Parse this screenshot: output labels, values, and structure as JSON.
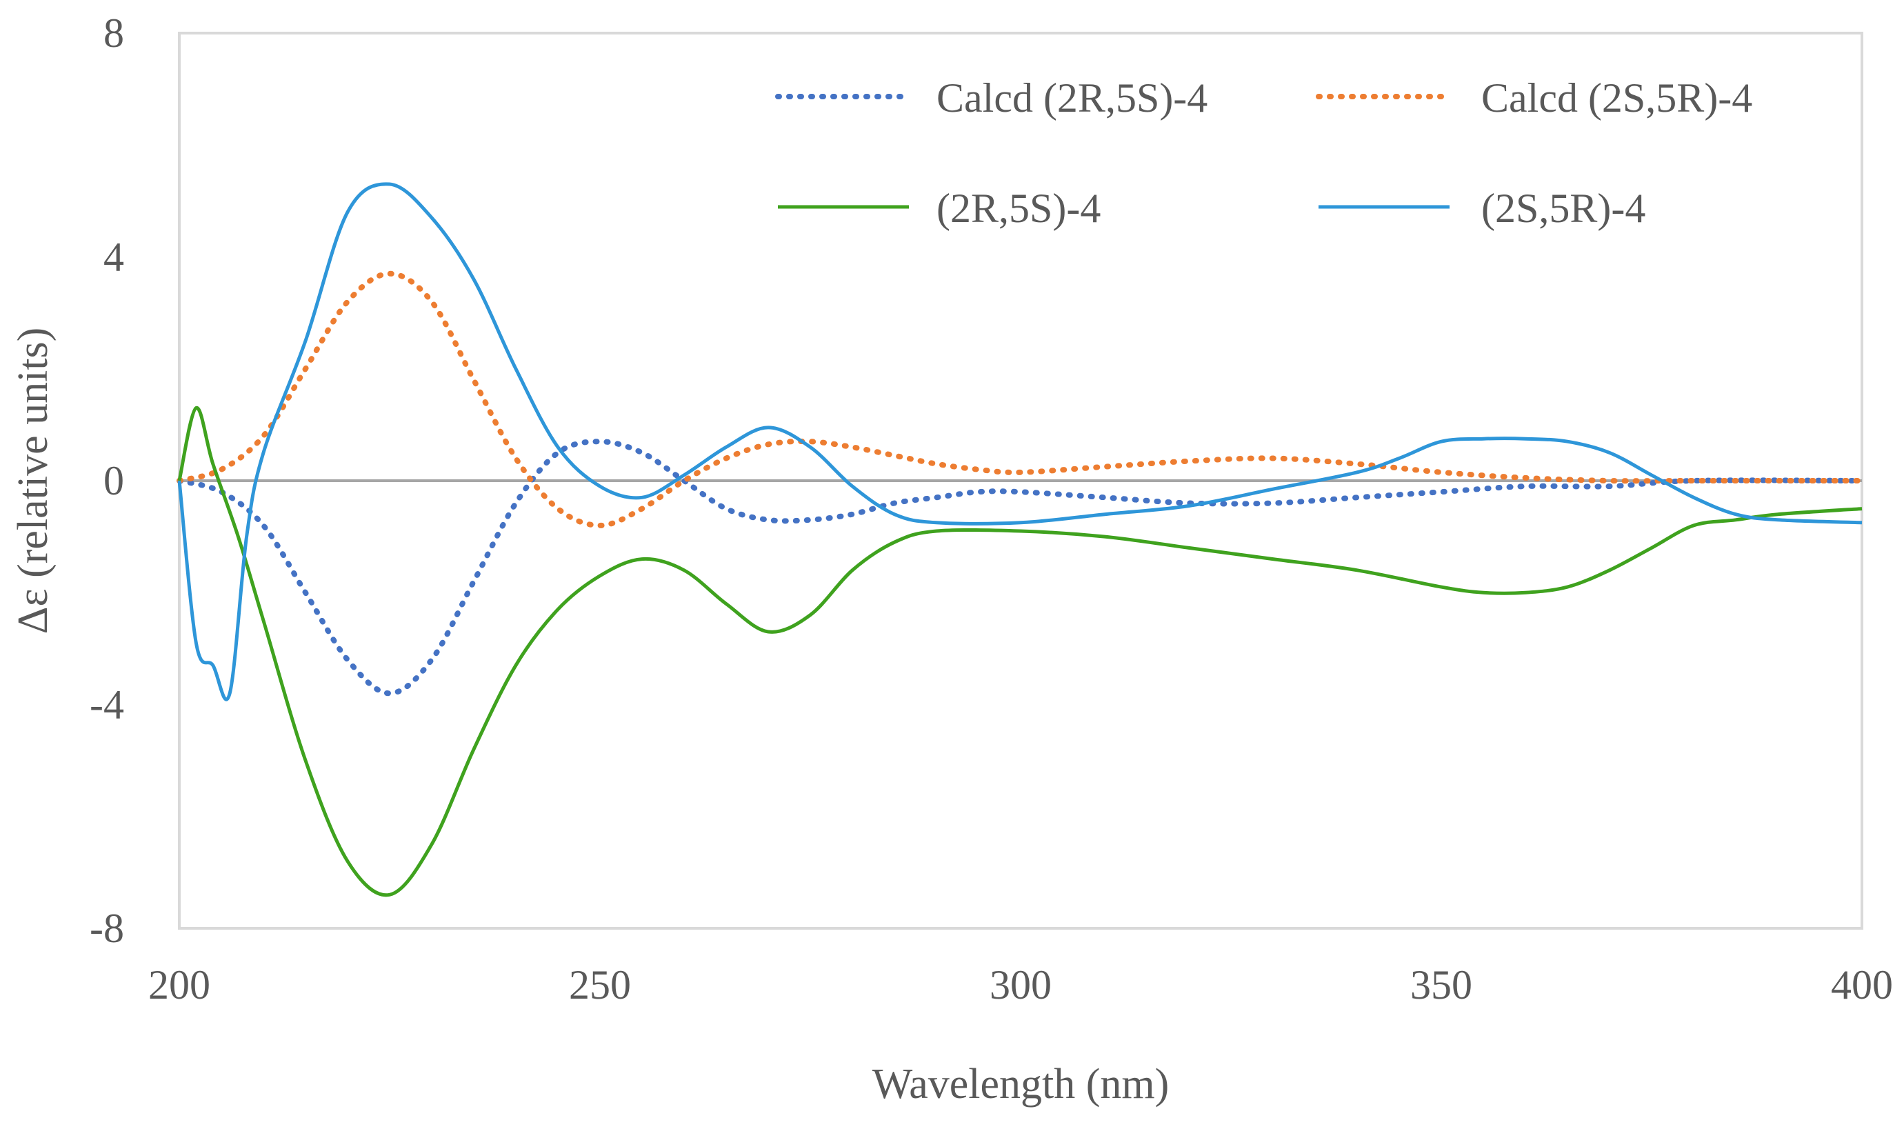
{
  "chart_data": {
    "type": "line",
    "title": "",
    "xlabel": "Wavelength (nm)",
    "ylabel": "Δε (relative units)",
    "xlim": [
      200,
      400
    ],
    "ylim": [
      -8,
      8
    ],
    "x_ticks": [
      "200",
      "250",
      "300",
      "350",
      "400"
    ],
    "y_ticks": [
      "8",
      "4",
      "0",
      "-4",
      "-8"
    ],
    "x_tick_values": [
      200,
      250,
      300,
      350,
      400
    ],
    "y_tick_values": [
      8,
      4,
      0,
      -4,
      -8
    ],
    "grid": false,
    "legend_position": "top-right",
    "series": [
      {
        "name": "Calcd (2R,5S)-4",
        "color": "#4472C4",
        "style": "dotted",
        "points": [
          [
            200,
            0.0
          ],
          [
            205,
            -0.2
          ],
          [
            210,
            -0.8
          ],
          [
            215,
            -2.0
          ],
          [
            220,
            -3.2
          ],
          [
            225,
            -3.8
          ],
          [
            230,
            -3.2
          ],
          [
            235,
            -1.8
          ],
          [
            240,
            -0.4
          ],
          [
            245,
            0.5
          ],
          [
            250,
            0.7
          ],
          [
            255,
            0.5
          ],
          [
            260,
            0.0
          ],
          [
            265,
            -0.5
          ],
          [
            270,
            -0.7
          ],
          [
            275,
            -0.7
          ],
          [
            280,
            -0.6
          ],
          [
            285,
            -0.4
          ],
          [
            290,
            -0.3
          ],
          [
            295,
            -0.2
          ],
          [
            300,
            -0.2
          ],
          [
            310,
            -0.3
          ],
          [
            320,
            -0.4
          ],
          [
            330,
            -0.4
          ],
          [
            340,
            -0.3
          ],
          [
            350,
            -0.2
          ],
          [
            360,
            -0.1
          ],
          [
            370,
            -0.1
          ],
          [
            380,
            0.0
          ],
          [
            400,
            0.0
          ]
        ]
      },
      {
        "name": "Calcd (2S,5R)-4",
        "color": "#ED7D31",
        "style": "dotted",
        "points": [
          [
            200,
            0.0
          ],
          [
            205,
            0.2
          ],
          [
            210,
            0.8
          ],
          [
            215,
            2.0
          ],
          [
            220,
            3.2
          ],
          [
            225,
            3.7
          ],
          [
            230,
            3.2
          ],
          [
            235,
            1.8
          ],
          [
            240,
            0.4
          ],
          [
            245,
            -0.5
          ],
          [
            250,
            -0.8
          ],
          [
            255,
            -0.5
          ],
          [
            260,
            0.0
          ],
          [
            265,
            0.4
          ],
          [
            270,
            0.65
          ],
          [
            275,
            0.7
          ],
          [
            280,
            0.6
          ],
          [
            285,
            0.45
          ],
          [
            290,
            0.3
          ],
          [
            295,
            0.2
          ],
          [
            300,
            0.15
          ],
          [
            310,
            0.25
          ],
          [
            320,
            0.35
          ],
          [
            330,
            0.4
          ],
          [
            340,
            0.3
          ],
          [
            350,
            0.15
          ],
          [
            360,
            0.05
          ],
          [
            370,
            0.0
          ],
          [
            380,
            0.0
          ],
          [
            400,
            0.0
          ]
        ]
      },
      {
        "name": "(2R,5S)-4",
        "color": "#3FA21E",
        "style": "solid",
        "points": [
          [
            200,
            0.0
          ],
          [
            202,
            1.3
          ],
          [
            204,
            0.3
          ],
          [
            207,
            -1.0
          ],
          [
            210,
            -2.5
          ],
          [
            215,
            -5.0
          ],
          [
            220,
            -6.8
          ],
          [
            225,
            -7.4
          ],
          [
            230,
            -6.5
          ],
          [
            235,
            -4.8
          ],
          [
            240,
            -3.3
          ],
          [
            245,
            -2.3
          ],
          [
            250,
            -1.7
          ],
          [
            255,
            -1.4
          ],
          [
            260,
            -1.6
          ],
          [
            265,
            -2.2
          ],
          [
            270,
            -2.7
          ],
          [
            275,
            -2.4
          ],
          [
            280,
            -1.6
          ],
          [
            285,
            -1.1
          ],
          [
            290,
            -0.9
          ],
          [
            300,
            -0.9
          ],
          [
            310,
            -1.0
          ],
          [
            320,
            -1.2
          ],
          [
            330,
            -1.4
          ],
          [
            340,
            -1.6
          ],
          [
            350,
            -1.9
          ],
          [
            355,
            -2.0
          ],
          [
            360,
            -2.0
          ],
          [
            365,
            -1.9
          ],
          [
            370,
            -1.6
          ],
          [
            375,
            -1.2
          ],
          [
            380,
            -0.8
          ],
          [
            385,
            -0.7
          ],
          [
            390,
            -0.6
          ],
          [
            400,
            -0.5
          ]
        ]
      },
      {
        "name": "(2S,5R)-4",
        "color": "#2E96D9",
        "style": "solid",
        "points": [
          [
            200,
            0.0
          ],
          [
            202,
            -2.9
          ],
          [
            204,
            -3.3
          ],
          [
            206,
            -3.8
          ],
          [
            208,
            -1.0
          ],
          [
            210,
            0.5
          ],
          [
            215,
            2.5
          ],
          [
            220,
            4.8
          ],
          [
            225,
            5.3
          ],
          [
            230,
            4.7
          ],
          [
            235,
            3.6
          ],
          [
            240,
            2.0
          ],
          [
            245,
            0.6
          ],
          [
            250,
            -0.1
          ],
          [
            255,
            -0.3
          ],
          [
            260,
            0.1
          ],
          [
            265,
            0.6
          ],
          [
            270,
            0.95
          ],
          [
            275,
            0.6
          ],
          [
            280,
            -0.1
          ],
          [
            285,
            -0.6
          ],
          [
            290,
            -0.75
          ],
          [
            300,
            -0.75
          ],
          [
            310,
            -0.6
          ],
          [
            320,
            -0.45
          ],
          [
            330,
            -0.15
          ],
          [
            340,
            0.15
          ],
          [
            345,
            0.4
          ],
          [
            350,
            0.7
          ],
          [
            355,
            0.75
          ],
          [
            360,
            0.75
          ],
          [
            365,
            0.7
          ],
          [
            370,
            0.5
          ],
          [
            375,
            0.1
          ],
          [
            380,
            -0.3
          ],
          [
            385,
            -0.6
          ],
          [
            390,
            -0.7
          ],
          [
            400,
            -0.75
          ]
        ]
      }
    ]
  }
}
